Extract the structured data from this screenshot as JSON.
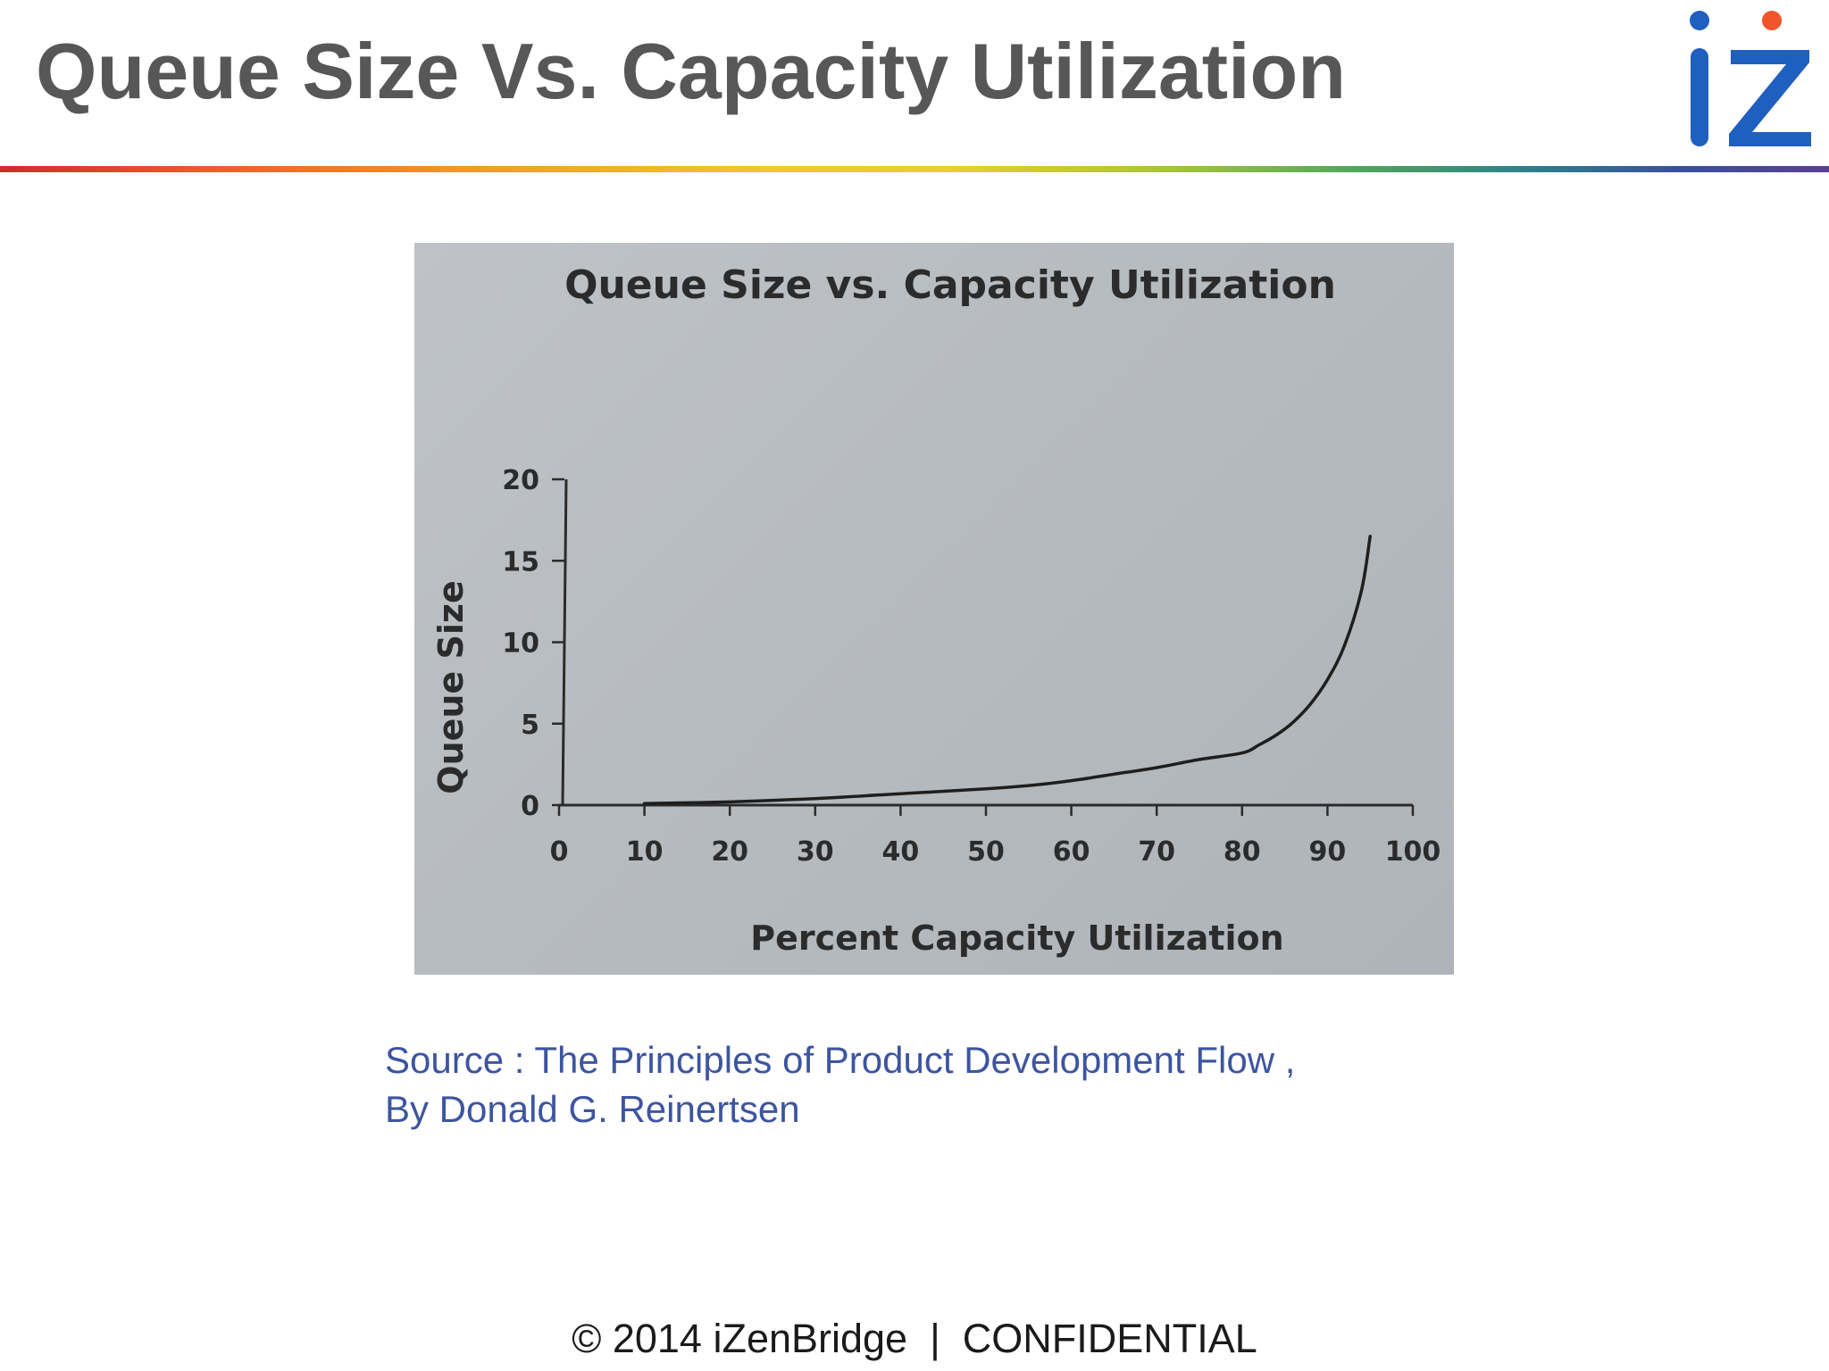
{
  "slide": {
    "title": "Queue Size Vs. Capacity Utilization",
    "source_line1": "Source : The Principles of Product Development Flow ,",
    "source_line2": "By Donald G. Reinertsen",
    "footer": "© 2014 iZenBridge  |  CONFIDENTIAL",
    "logo_text": "iZ",
    "colors": {
      "title": "#575757",
      "source": "#3d55a0",
      "logo_blue": "#1f5fbf",
      "logo_orange": "#f2552a"
    }
  },
  "chart_data": {
    "type": "line",
    "title": "Queue Size vs. Capacity Utilization",
    "xlabel": "Percent Capacity Utilization",
    "ylabel": "Queue Size",
    "xlim": [
      0,
      100
    ],
    "ylim": [
      0,
      20
    ],
    "xticks": [
      0,
      10,
      20,
      30,
      40,
      50,
      60,
      70,
      80,
      90,
      100
    ],
    "yticks": [
      0,
      5,
      10,
      15,
      20
    ],
    "grid": false,
    "series": [
      {
        "x": [
          10,
          20,
          30,
          40,
          50,
          55,
          60,
          65,
          70,
          75,
          80,
          82,
          84,
          86,
          88,
          90,
          92,
          94,
          95
        ],
        "values": [
          0.1,
          0.2,
          0.4,
          0.7,
          1.0,
          1.2,
          1.5,
          1.9,
          2.3,
          2.8,
          3.2,
          3.7,
          4.3,
          5.1,
          6.2,
          7.7,
          9.8,
          13.2,
          16.5
        ]
      }
    ]
  }
}
